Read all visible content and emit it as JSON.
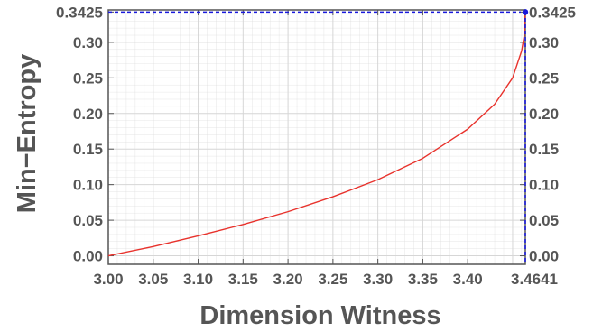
{
  "chart_data": {
    "type": "line",
    "xlabel": "Dimension Witness",
    "ylabel": "Min−Entropy",
    "xlim": [
      3.0,
      3.4641
    ],
    "ylim": [
      -0.012,
      0.3455
    ],
    "x_ticks": [
      "3.00",
      "3.05",
      "3.10",
      "3.15",
      "3.20",
      "3.25",
      "3.30",
      "3.35",
      "3.40",
      "3.4641"
    ],
    "y_ticks": [
      "0.00",
      "0.05",
      "0.10",
      "0.15",
      "0.20",
      "0.25",
      "0.30",
      "0.3425"
    ],
    "y_ticks_right": [
      "0.00",
      "0.05",
      "0.10",
      "0.15",
      "0.20",
      "0.25",
      "0.30",
      "0.3425"
    ],
    "grid": true,
    "series": [
      {
        "color": "#e8322c",
        "x": [
          3.0,
          3.05,
          3.1,
          3.15,
          3.2,
          3.25,
          3.3,
          3.35,
          3.4,
          3.43,
          3.45,
          3.46,
          3.463,
          3.4641
        ],
        "y": [
          0.0,
          0.013,
          0.028,
          0.044,
          0.062,
          0.083,
          0.107,
          0.137,
          0.178,
          0.213,
          0.25,
          0.288,
          0.31,
          0.3425
        ]
      }
    ],
    "annotations": [
      {
        "type": "point",
        "x": 3.4641,
        "y": 0.3425,
        "color": "#1a1adb"
      },
      {
        "type": "dashed-hline",
        "y": 0.3425,
        "color": "#1a1adb"
      },
      {
        "type": "dashed-vline",
        "x": 3.4641,
        "color": "#1a1adb"
      }
    ],
    "colors": {
      "grid": "#d6d6d6",
      "frame": "#555555",
      "marker": "#1a1adb",
      "curve": "#e8322c"
    }
  }
}
